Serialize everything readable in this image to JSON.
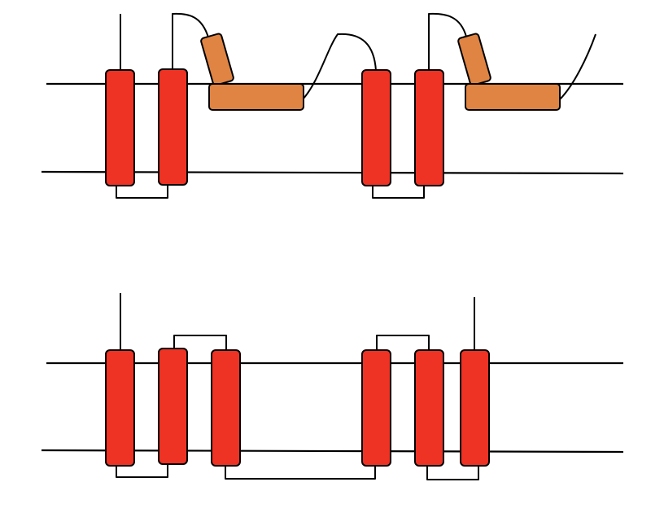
{
  "colors": {
    "transmembrane_helix": "#ee3224",
    "amphipathic_helix": "#e08443",
    "outline": "#000000",
    "background": "#ffffff"
  },
  "topology_top": {
    "transmembrane_helices": 4,
    "amphipathic_helices": 2
  },
  "topology_bottom": {
    "transmembrane_helices": 6,
    "amphipathic_helices": 0
  }
}
